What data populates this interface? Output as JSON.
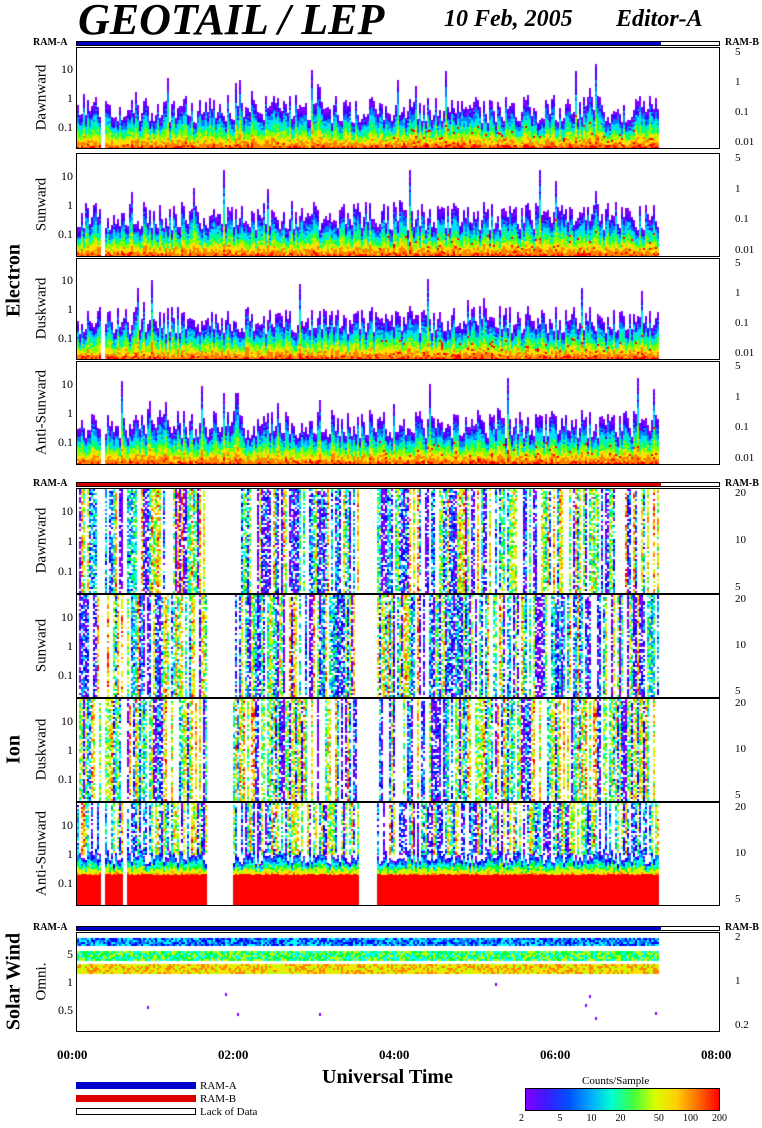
{
  "header": {
    "title": "GEOTAIL / LEP",
    "date": "10 Feb, 2005",
    "editor": "Editor-A"
  },
  "colors": {
    "ram_a": "#0000cc",
    "ram_b": "#dd0000",
    "lack_of_data": "#ffffff"
  },
  "chart_data": {
    "type": "heatmap",
    "xlabel": "Universal Time",
    "x_ticks": [
      "00:00",
      "02:00",
      "04:00",
      "06:00",
      "08:00"
    ],
    "xlim": [
      "00:00",
      "08:00"
    ],
    "data_end": "07:15",
    "colorbar": {
      "label": "Counts/Sample",
      "ticks": [
        "2",
        "5",
        "10",
        "20",
        "50",
        "100",
        "200"
      ],
      "scale": "log",
      "range": [
        2,
        200
      ]
    },
    "groups": [
      {
        "name": "Electron",
        "ram_left": "RAM-A",
        "ram_right": "RAM-B",
        "panels": [
          {
            "name": "Dawnward",
            "left_ticks": [
              "10",
              "1",
              "0.1"
            ],
            "right_ticks": [
              "5",
              "1",
              "0.1",
              "0.01"
            ]
          },
          {
            "name": "Sunward",
            "left_ticks": [
              "10",
              "1",
              "0.1"
            ],
            "right_ticks": [
              "5",
              "1",
              "0.1",
              "0.01"
            ]
          },
          {
            "name": "Duskward",
            "left_ticks": [
              "10",
              "1",
              "0.1"
            ],
            "right_ticks": [
              "5",
              "1",
              "0.1",
              "0.01"
            ]
          },
          {
            "name": "Anti-Sunward",
            "left_ticks": [
              "10",
              "1",
              "0.1"
            ],
            "right_ticks": [
              "5",
              "1",
              "0.1",
              "0.01"
            ]
          }
        ]
      },
      {
        "name": "Ion",
        "ram_left": "RAM-A",
        "ram_right": "RAM-B",
        "panels": [
          {
            "name": "Dawnward",
            "left_ticks": [
              "10",
              "1",
              "0.1"
            ],
            "right_ticks": [
              "20",
              "10",
              "5"
            ]
          },
          {
            "name": "Sunward",
            "left_ticks": [
              "10",
              "1",
              "0.1"
            ],
            "right_ticks": [
              "20",
              "10",
              "5"
            ]
          },
          {
            "name": "Duskward",
            "left_ticks": [
              "10",
              "1",
              "0.1"
            ],
            "right_ticks": [
              "20",
              "10",
              "5"
            ]
          },
          {
            "name": "Anti-Sunward",
            "left_ticks": [
              "10",
              "1",
              "0.1"
            ],
            "right_ticks": [
              "20",
              "10",
              "5"
            ]
          }
        ]
      },
      {
        "name": "Solar Wind",
        "ram_left": "RAM-A",
        "ram_right": "RAM-B",
        "panels": [
          {
            "name": "Omni.",
            "left_ticks": [
              "5",
              "1",
              "0.5"
            ],
            "right_ticks": [
              "2",
              "1",
              "0.2"
            ]
          }
        ]
      }
    ],
    "legend": [
      "RAM-A",
      "RAM-B",
      "Lack of Data"
    ]
  }
}
